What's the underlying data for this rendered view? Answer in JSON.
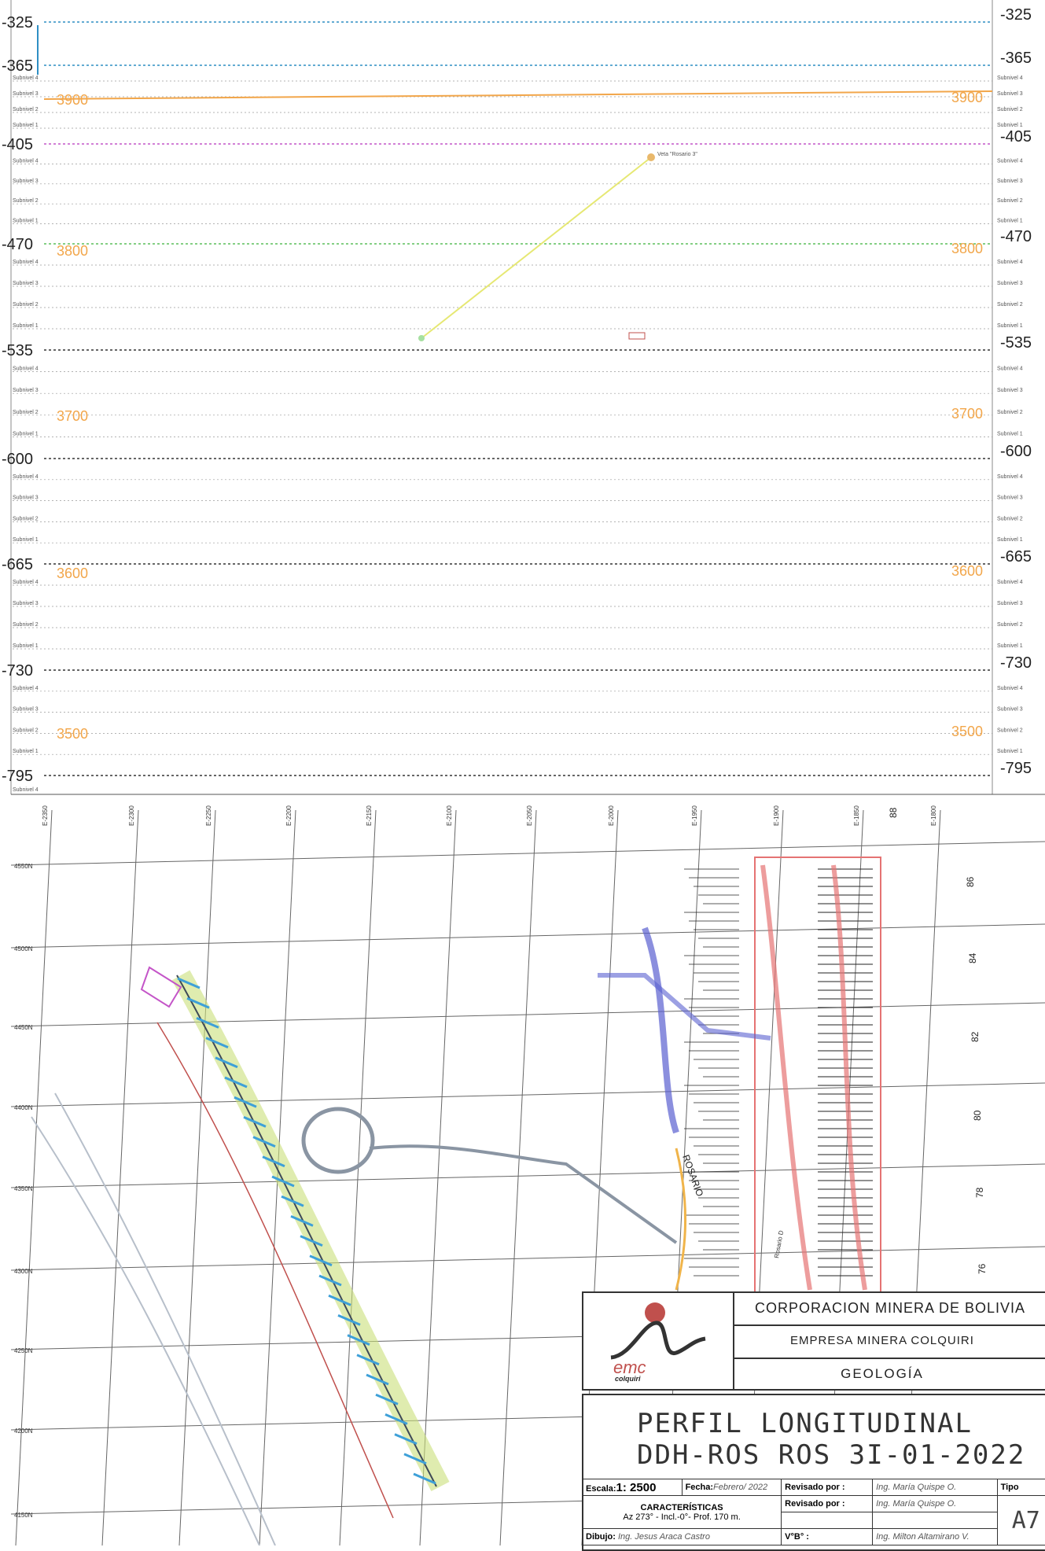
{
  "section": {
    "levels": [
      "-325",
      "-365",
      "-405",
      "-470",
      "-535",
      "-600",
      "-665",
      "-730",
      "-795"
    ],
    "elevations": [
      "3900",
      "3800",
      "3700",
      "3600",
      "3500"
    ],
    "sublevel_labels": [
      "Subnivel 4",
      "Subnivel 3",
      "Subnivel 2",
      "Subnivel 1"
    ],
    "vein_label": "Veta \"Rosario 3\"",
    "colors": {
      "level_line": "#333333",
      "elevation": "#f2a64a",
      "drill_trace": "#e6e873",
      "magenta": "#c455c8"
    }
  },
  "plan": {
    "eastings": [
      "E-2350",
      "E-2300",
      "E-2250",
      "E-2200",
      "E-2150",
      "E-2100",
      "E-2050",
      "E-2000",
      "E-1950",
      "E-1900",
      "E-1850",
      "E-1800"
    ],
    "northings": [
      "4550N",
      "4500N",
      "4450N",
      "4400N",
      "4350N",
      "4300N",
      "4250N",
      "4200N",
      "4150N"
    ],
    "right_numbers": [
      "86",
      "84",
      "82",
      "80",
      "78",
      "76"
    ],
    "east_extra": [
      "88"
    ],
    "vein_name": "ROSARIO",
    "other_labels": [
      "Rosario D"
    ]
  },
  "title_block": {
    "company": "CORPORACION MINERA DE BOLIVIA",
    "subsidiary": "EMPRESA MINERA COLQUIRI",
    "department": "GEOLOGÍA",
    "logo_text": "emc",
    "logo_subtext": "colquiri",
    "title_line1": "PERFIL LONGITUDINAL",
    "title_line2": "DDH-ROS ROS 3I-01-2022",
    "escala_label": "Escala:",
    "escala_value": "1: 2500",
    "fecha_label": "Fecha:",
    "fecha_value": "Febrero/ 2022",
    "revisado1_label": "Revisado por :",
    "revisado1_value": "Ing. María Quispe O.",
    "revisado2_label": "Revisado por :",
    "revisado2_value": "Ing. María Quispe O.",
    "caracteristicas_label": "CARACTERÍSTICAS",
    "caracteristicas_value": "Az 273° - Incl.-0°- Prof. 170 m.",
    "dibujo_label": "Dibujo:",
    "dibujo_value": "Ing. Jesus Araca Castro",
    "vobo_label": "V°B° :",
    "vobo_value": "Ing. Milton Altamirano V.",
    "tipo_label": "Tipo",
    "tipo_value": "A7"
  }
}
